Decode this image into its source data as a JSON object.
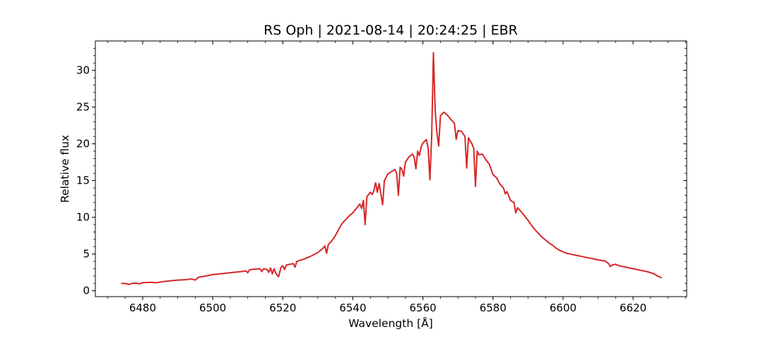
{
  "chart_data": {
    "type": "line",
    "title": "RS Oph | 2021-08-14 | 20:24:25 | EBR",
    "xlabel": "Wavelength [Å]",
    "ylabel": "Relative flux",
    "xlim": [
      6466.5,
      6635.3
    ],
    "ylim": [
      -0.8,
      34.0
    ],
    "xticks": [
      6480,
      6500,
      6520,
      6540,
      6560,
      6580,
      6600,
      6620
    ],
    "yticks": [
      0,
      5,
      10,
      15,
      20,
      25,
      30
    ],
    "grid": false,
    "series": [
      {
        "color": "#d62728",
        "points": [
          [
            6474.0,
            1.0
          ],
          [
            6475.5,
            0.95
          ],
          [
            6476.0,
            0.85
          ],
          [
            6477.0,
            1.0
          ],
          [
            6478.0,
            1.05
          ],
          [
            6479.0,
            0.95
          ],
          [
            6480.0,
            1.1
          ],
          [
            6482.0,
            1.15
          ],
          [
            6484.0,
            1.1
          ],
          [
            6486.0,
            1.25
          ],
          [
            6488.0,
            1.35
          ],
          [
            6490.0,
            1.45
          ],
          [
            6492.0,
            1.5
          ],
          [
            6494.0,
            1.6
          ],
          [
            6495.0,
            1.45
          ],
          [
            6496.0,
            1.85
          ],
          [
            6498.0,
            2.0
          ],
          [
            6500.0,
            2.2
          ],
          [
            6502.0,
            2.3
          ],
          [
            6504.0,
            2.4
          ],
          [
            6506.0,
            2.5
          ],
          [
            6508.0,
            2.6
          ],
          [
            6509.5,
            2.7
          ],
          [
            6510.0,
            2.45
          ],
          [
            6510.5,
            2.85
          ],
          [
            6512.0,
            2.95
          ],
          [
            6513.5,
            3.0
          ],
          [
            6514.0,
            2.6
          ],
          [
            6514.5,
            3.0
          ],
          [
            6515.5,
            2.9
          ],
          [
            6516.0,
            2.5
          ],
          [
            6516.5,
            3.1
          ],
          [
            6517.0,
            2.3
          ],
          [
            6517.5,
            3.0
          ],
          [
            6518.0,
            2.4
          ],
          [
            6518.8,
            1.9
          ],
          [
            6519.5,
            3.2
          ],
          [
            6520.0,
            3.4
          ],
          [
            6520.5,
            2.9
          ],
          [
            6521.0,
            3.5
          ],
          [
            6522.0,
            3.6
          ],
          [
            6523.0,
            3.7
          ],
          [
            6523.5,
            3.2
          ],
          [
            6524.0,
            4.0
          ],
          [
            6526.0,
            4.3
          ],
          [
            6528.0,
            4.7
          ],
          [
            6530.0,
            5.2
          ],
          [
            6531.5,
            5.8
          ],
          [
            6532.0,
            6.1
          ],
          [
            6532.5,
            5.1
          ],
          [
            6533.0,
            6.3
          ],
          [
            6534.0,
            6.8
          ],
          [
            6535.0,
            7.5
          ],
          [
            6536.0,
            8.4
          ],
          [
            6537.0,
            9.2
          ],
          [
            6538.0,
            9.7
          ],
          [
            6539.0,
            10.2
          ],
          [
            6540.0,
            10.6
          ],
          [
            6541.0,
            11.2
          ],
          [
            6542.0,
            11.8
          ],
          [
            6542.5,
            11.2
          ],
          [
            6543.0,
            12.3
          ],
          [
            6543.5,
            9.0
          ],
          [
            6544.0,
            12.8
          ],
          [
            6545.0,
            13.4
          ],
          [
            6545.5,
            13.1
          ],
          [
            6546.0,
            13.6
          ],
          [
            6546.5,
            14.7
          ],
          [
            6547.0,
            13.4
          ],
          [
            6547.5,
            14.6
          ],
          [
            6548.0,
            13.2
          ],
          [
            6548.5,
            11.7
          ],
          [
            6549.0,
            15.0
          ],
          [
            6550.0,
            15.9
          ],
          [
            6551.0,
            16.2
          ],
          [
            6552.0,
            16.5
          ],
          [
            6552.5,
            16.0
          ],
          [
            6553.0,
            13.0
          ],
          [
            6553.5,
            16.8
          ],
          [
            6554.0,
            16.5
          ],
          [
            6554.5,
            15.6
          ],
          [
            6555.0,
            17.5
          ],
          [
            6556.0,
            18.2
          ],
          [
            6557.0,
            18.6
          ],
          [
            6557.5,
            18.2
          ],
          [
            6558.0,
            16.6
          ],
          [
            6558.5,
            19.0
          ],
          [
            6559.0,
            18.4
          ],
          [
            6559.5,
            19.6
          ],
          [
            6560.0,
            20.1
          ],
          [
            6561.0,
            20.6
          ],
          [
            6561.5,
            19.4
          ],
          [
            6562.0,
            15.1
          ],
          [
            6562.5,
            21.0
          ],
          [
            6563.0,
            32.4
          ],
          [
            6563.5,
            24.5
          ],
          [
            6564.0,
            21.5
          ],
          [
            6564.5,
            19.7
          ],
          [
            6565.0,
            23.8
          ],
          [
            6566.0,
            24.3
          ],
          [
            6567.0,
            23.9
          ],
          [
            6568.0,
            23.3
          ],
          [
            6569.0,
            22.8
          ],
          [
            6569.5,
            20.6
          ],
          [
            6570.0,
            21.8
          ],
          [
            6571.0,
            21.7
          ],
          [
            6572.0,
            21.0
          ],
          [
            6572.5,
            16.7
          ],
          [
            6573.0,
            20.8
          ],
          [
            6574.0,
            20.0
          ],
          [
            6574.5,
            19.4
          ],
          [
            6575.0,
            14.2
          ],
          [
            6575.5,
            19.0
          ],
          [
            6576.0,
            18.5
          ],
          [
            6577.0,
            18.6
          ],
          [
            6578.0,
            17.8
          ],
          [
            6579.0,
            17.2
          ],
          [
            6580.0,
            15.8
          ],
          [
            6581.0,
            15.4
          ],
          [
            6582.0,
            14.5
          ],
          [
            6583.0,
            14.0
          ],
          [
            6583.5,
            13.2
          ],
          [
            6584.0,
            13.5
          ],
          [
            6585.0,
            12.3
          ],
          [
            6586.0,
            12.0
          ],
          [
            6586.5,
            10.6
          ],
          [
            6587.0,
            11.3
          ],
          [
            6588.0,
            10.8
          ],
          [
            6589.0,
            10.2
          ],
          [
            6590.0,
            9.6
          ],
          [
            6591.0,
            8.9
          ],
          [
            6592.0,
            8.3
          ],
          [
            6593.0,
            7.8
          ],
          [
            6594.0,
            7.3
          ],
          [
            6595.0,
            6.9
          ],
          [
            6596.0,
            6.5
          ],
          [
            6597.0,
            6.2
          ],
          [
            6598.0,
            5.8
          ],
          [
            6599.0,
            5.5
          ],
          [
            6600.0,
            5.3
          ],
          [
            6601.0,
            5.1
          ],
          [
            6602.0,
            5.0
          ],
          [
            6604.0,
            4.8
          ],
          [
            6606.0,
            4.6
          ],
          [
            6608.0,
            4.4
          ],
          [
            6610.0,
            4.2
          ],
          [
            6612.0,
            4.05
          ],
          [
            6613.0,
            3.7
          ],
          [
            6613.5,
            3.3
          ],
          [
            6614.0,
            3.5
          ],
          [
            6615.0,
            3.6
          ],
          [
            6616.0,
            3.4
          ],
          [
            6618.0,
            3.2
          ],
          [
            6620.0,
            3.0
          ],
          [
            6622.0,
            2.8
          ],
          [
            6624.0,
            2.6
          ],
          [
            6626.0,
            2.3
          ],
          [
            6627.0,
            2.0
          ],
          [
            6628.0,
            1.8
          ]
        ]
      }
    ]
  }
}
